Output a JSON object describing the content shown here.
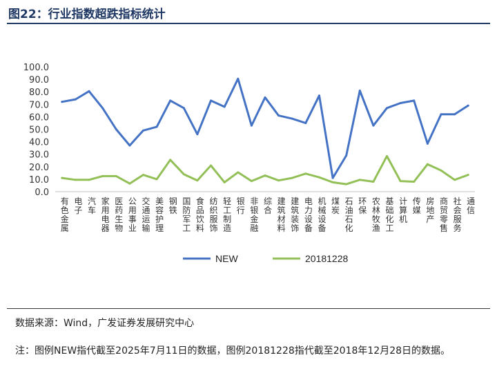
{
  "header": {
    "title": "图22：行业指数超跌指标统计"
  },
  "footer": {
    "source": "数据来源：Wind，广发证券发展研究中心",
    "note": "注：图例NEW指代截至2025年7月11日的数据，图例20181228指代截至2018年12月28日的数据。"
  },
  "chart_data": {
    "type": "line",
    "ylim": [
      0,
      100
    ],
    "yticks": [
      "0.0",
      "10.0",
      "20.0",
      "30.0",
      "40.0",
      "50.0",
      "60.0",
      "70.0",
      "80.0",
      "90.0",
      "100.0"
    ],
    "categories": [
      "有色金属",
      "电子",
      "汽车",
      "家用电器",
      "医药生物",
      "公用事业",
      "交通运输",
      "美容护理",
      "钢铁",
      "国防军工",
      "食品饮料",
      "纺织服饰",
      "轻工制造",
      "银行",
      "非银金融",
      "综合",
      "建筑材料",
      "建筑装饰",
      "电力设备",
      "机械设备",
      "煤炭",
      "石油石化",
      "环保",
      "农林牧渔",
      "基础化工",
      "计算机",
      "传媒",
      "房地产",
      "商贸零售",
      "社会服务",
      "通信"
    ],
    "series": [
      {
        "name": "NEW",
        "color": "#4472c4",
        "values": [
          72,
          74,
          80.5,
          67,
          50,
          37,
          49,
          52,
          73,
          67,
          46,
          73,
          68,
          90.5,
          53,
          75.5,
          61,
          58.5,
          55,
          77,
          11,
          29,
          81,
          53,
          67,
          71,
          73,
          38.5,
          62,
          62,
          69
        ]
      },
      {
        "name": "20181228",
        "color": "#92c057",
        "values": [
          11,
          9.5,
          9.5,
          12.5,
          12.5,
          6.5,
          13.5,
          10,
          25.5,
          14,
          9,
          21,
          7.5,
          15.5,
          8.5,
          13,
          9,
          11,
          14.5,
          11.5,
          7.5,
          6,
          9.5,
          8,
          28.5,
          8.5,
          8,
          22,
          17,
          9.5,
          13.5
        ]
      }
    ],
    "legend_position": "bottom",
    "grid": false
  }
}
